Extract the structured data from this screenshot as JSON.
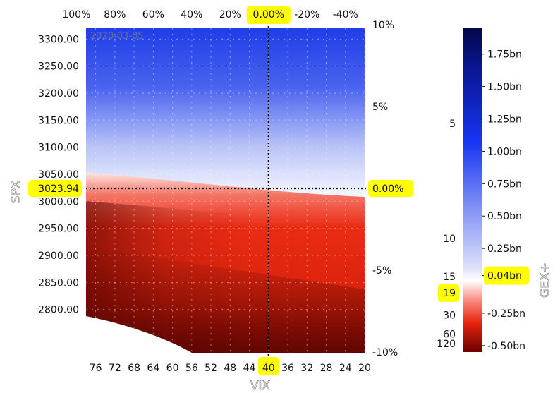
{
  "chart_data": {
    "type": "heatmap",
    "title": "",
    "date_label": "2020-03-05",
    "xlabel": "VIX",
    "ylabel": "SPX",
    "colorbar_label": "GEX+",
    "x_ticks_bottom": [
      "76",
      "72",
      "68",
      "64",
      "60",
      "56",
      "52",
      "48",
      "44",
      "40",
      "36",
      "32",
      "28",
      "24",
      "20"
    ],
    "x_range": [
      78,
      20
    ],
    "x_ticks_top": [
      "100%",
      "80%",
      "60%",
      "40%",
      "20%",
      "0.00%",
      "-20%",
      "-40%"
    ],
    "x_top_values": [
      100,
      80,
      60,
      40,
      20,
      0,
      -20,
      -40
    ],
    "y_ticks_left": [
      "3300.00",
      "3250.00",
      "3200.00",
      "3150.00",
      "3100.00",
      "3050.00",
      "3000.00",
      "2950.00",
      "2900.00",
      "2850.00",
      "2800.00"
    ],
    "y_left_values": [
      3300,
      3250,
      3200,
      3150,
      3100,
      3050,
      3000,
      2950,
      2900,
      2850,
      2800
    ],
    "y_range": [
      2720,
      3320
    ],
    "y_ticks_right": [
      "10%",
      "5%",
      "0.00%",
      "-5%",
      "-10%"
    ],
    "y_right_values": [
      10,
      5,
      0,
      -5,
      -10
    ],
    "current_spx": "3023.94",
    "current_vix": "40",
    "current_spx_pct": "0.00%",
    "current_vix_pct": "0.00%",
    "colorbar_ticks": [
      "1.75bn",
      "1.50bn",
      "1.25bn",
      "1.00bn",
      "0.75bn",
      "0.50bn",
      "0.25bn",
      "0.04bn",
      "-0.25bn",
      "-0.50bn"
    ],
    "colorbar_values": [
      1.75,
      1.5,
      1.25,
      1.0,
      0.75,
      0.5,
      0.25,
      0.04,
      -0.25,
      -0.5
    ],
    "colorbar_range": [
      -0.55,
      1.95
    ],
    "current_gex": "0.04bn",
    "vix_scale_ticks": [
      "5",
      "10",
      "15",
      "19",
      "30",
      "60",
      "120"
    ],
    "vix_scale_values": [
      5,
      10,
      15,
      19,
      30,
      60,
      120
    ],
    "current_vix_scale": "19",
    "colors": {
      "positive": "#0a1bd9",
      "neutral": "#ffffff",
      "negative": "#e8220c",
      "deep_negative": "#5a0000",
      "highlight": "#ffff00",
      "marker_line": "#000000"
    },
    "grid": true
  }
}
